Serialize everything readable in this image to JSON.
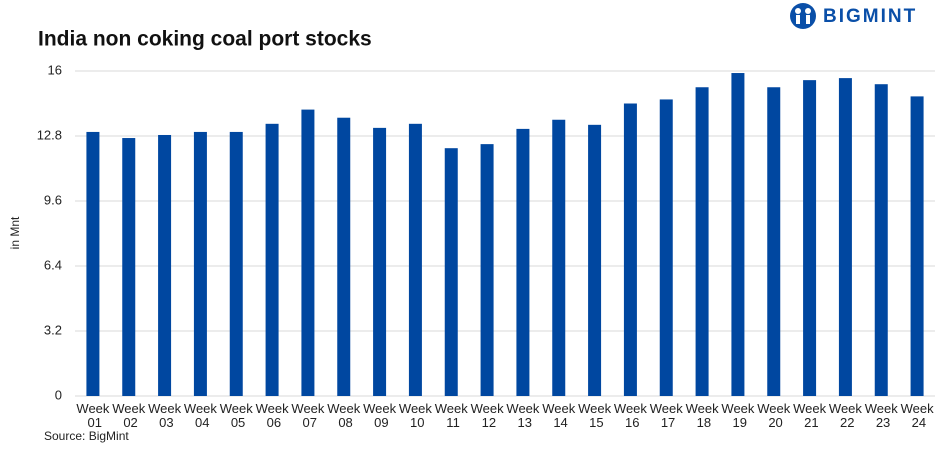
{
  "brand": "BIGMINT",
  "chart_data": {
    "type": "bar",
    "title": "India non coking coal port stocks",
    "y_label": "in Mnt",
    "source": "Source: BigMint",
    "categories": [
      "Week 01",
      "Week 02",
      "Week 03",
      "Week 04",
      "Week 05",
      "Week 06",
      "Week 07",
      "Week 08",
      "Week 09",
      "Week 10",
      "Week 11",
      "Week 12",
      "Week 13",
      "Week 14",
      "Week 15",
      "Week 16",
      "Week 17",
      "Week 18",
      "Week 19",
      "Week 20",
      "Week 21",
      "Week 22",
      "Week 23",
      "Week 24"
    ],
    "values": [
      13.0,
      12.7,
      12.85,
      13.0,
      13.0,
      13.4,
      14.1,
      13.7,
      13.2,
      13.4,
      12.2,
      12.4,
      13.15,
      13.6,
      13.35,
      14.4,
      14.6,
      15.2,
      15.9,
      15.2,
      15.55,
      15.65,
      15.35,
      14.75
    ],
    "color": "#0047a0",
    "ylim": [
      0,
      16
    ],
    "yticks": [
      0,
      3.2,
      6.4,
      9.6,
      12.8,
      16
    ],
    "grid": true
  }
}
